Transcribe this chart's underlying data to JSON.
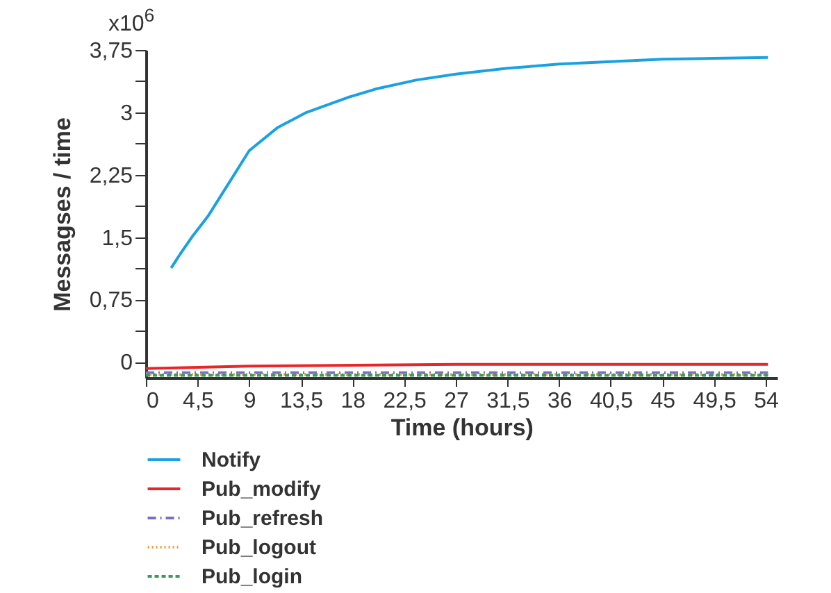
{
  "chart_data": {
    "type": "line",
    "xlabel": "Time (hours)",
    "ylabel": "Messagses / time",
    "annotations": [
      "x10$^{6}$"
    ],
    "xlim": [
      0,
      55
    ],
    "xticks": [
      {
        "value": 0,
        "label": "0"
      },
      {
        "value": 4.5,
        "label": "4,5"
      },
      {
        "value": 9,
        "label": "9"
      },
      {
        "value": 13.5,
        "label": "13,5"
      },
      {
        "value": 18,
        "label": "18"
      },
      {
        "value": 22.5,
        "label": "22,5"
      },
      {
        "value": 27,
        "label": "27"
      },
      {
        "value": 31.5,
        "label": "31,5"
      },
      {
        "value": 36,
        "label": "36"
      },
      {
        "value": 40.5,
        "label": "40,5"
      },
      {
        "value": 45,
        "label": "45"
      },
      {
        "value": 49.5,
        "label": "49,5"
      },
      {
        "value": 54,
        "label": "54"
      }
    ],
    "ylim": [
      -0.19,
      3.75
    ],
    "yticks": [
      {
        "value": 0,
        "label": "0"
      },
      {
        "value": 0.375,
        "label": null
      },
      {
        "value": 0.75,
        "label": "0,75"
      },
      {
        "value": 1.125,
        "label": null
      },
      {
        "value": 1.5,
        "label": "1,5"
      },
      {
        "value": 1.875,
        "label": null
      },
      {
        "value": 2.25,
        "label": "2,25"
      },
      {
        "value": 2.625,
        "label": null
      },
      {
        "value": 3,
        "label": "3"
      },
      {
        "value": 3.375,
        "label": null
      },
      {
        "value": 3.75,
        "label": "3,75"
      }
    ],
    "grid": false,
    "legend": "bottom left",
    "marker": "none",
    "series": [
      {
        "name": "Notify",
        "color": "#1ba1e2",
        "line_style": "solid",
        "x": [
          2.2,
          3,
          4,
          5.4,
          7,
          9,
          11.5,
          14,
          17.6,
          20,
          23.6,
          27,
          31.5,
          36,
          40.5,
          45,
          49.5,
          54.2
        ],
        "values": [
          1.13,
          1.3,
          1.5,
          1.75,
          2.1,
          2.54,
          2.82,
          3.0,
          3.18,
          3.28,
          3.39,
          3.46,
          3.53,
          3.58,
          3.61,
          3.64,
          3.65,
          3.66
        ]
      },
      {
        "name": "Pub_modify",
        "color": "#e8262a",
        "line_style": "solid",
        "x": [
          0,
          9,
          27,
          54.2
        ],
        "values": [
          -0.08,
          -0.05,
          -0.03,
          -0.03
        ]
      },
      {
        "name": "Pub_refresh",
        "color": "#7b6fc4",
        "line_style": "dashdot",
        "x": [
          0,
          54.2
        ],
        "values": [
          -0.13,
          -0.13
        ]
      },
      {
        "name": "Pub_logout",
        "color": "#e3a33a",
        "line_style": "dotted",
        "x": [
          0,
          54.2
        ],
        "values": [
          -0.15,
          -0.15
        ]
      },
      {
        "name": "Pub_login",
        "color": "#3a9a5a",
        "line_style": "dashed",
        "x": [
          0,
          54.2
        ],
        "values": [
          -0.16,
          -0.16
        ]
      }
    ]
  }
}
